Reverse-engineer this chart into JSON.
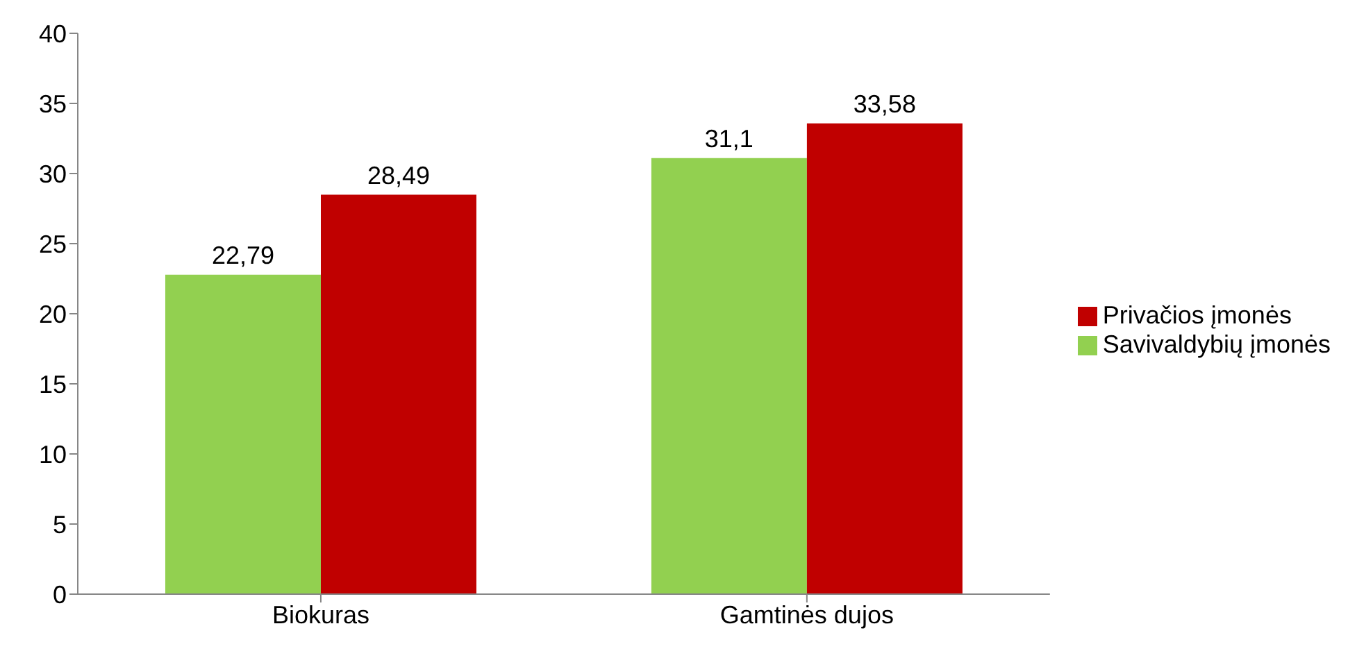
{
  "chart_data": {
    "type": "bar",
    "categories": [
      "Biokuras",
      "Gamtinės dujos"
    ],
    "series": [
      {
        "name": "Savivaldybių įmonės",
        "color": "#92d050",
        "values": [
          22.79,
          31.1
        ],
        "value_labels": [
          "22,79",
          "31,1"
        ]
      },
      {
        "name": "Privačios įmonės",
        "color": "#c00000",
        "values": [
          28.49,
          33.58
        ],
        "value_labels": [
          "28,49",
          "33,58"
        ]
      }
    ],
    "ylim": [
      0,
      40
    ],
    "yticks": [
      0,
      5,
      10,
      15,
      20,
      25,
      30,
      35,
      40
    ],
    "grid": false,
    "legend": "right"
  }
}
